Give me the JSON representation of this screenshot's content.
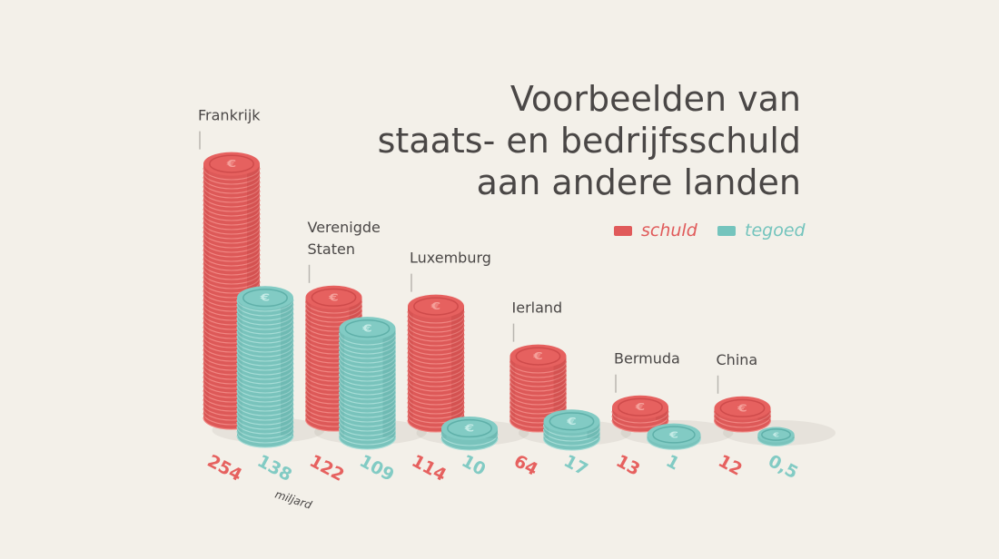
{
  "title": {
    "line1": "Voorbeelden van",
    "line2": "staats- en bedrijfsschuld",
    "line3": "aan andere landen"
  },
  "legend": {
    "schuld": "schuld",
    "tegoed": "tegoed"
  },
  "unit": "miljard",
  "colors": {
    "schuld": "#e05a5a",
    "tegoed": "#74c4bd",
    "text": "#4a4746",
    "leader": "#b9b6b0"
  },
  "coin_icon": "euro-icon",
  "chart_data": {
    "type": "bar",
    "title": "Voorbeelden van staats- en bedrijfsschuld aan andere landen",
    "unit": "miljard",
    "categories": [
      "Frankrijk",
      "Verenigde Staten",
      "Luxemburg",
      "Ierland",
      "Bermuda",
      "China"
    ],
    "category_lines": [
      [
        "Frankrijk"
      ],
      [
        "Verenigde",
        "Staten"
      ],
      [
        "Luxemburg"
      ],
      [
        "Ierland"
      ],
      [
        "Bermuda"
      ],
      [
        "China"
      ]
    ],
    "series": [
      {
        "name": "schuld",
        "values": [
          254,
          122,
          114,
          64,
          13,
          12
        ],
        "labels": [
          "254",
          "122",
          "114",
          "64",
          "13",
          "12"
        ]
      },
      {
        "name": "tegoed",
        "values": [
          138,
          109,
          10,
          17,
          1,
          0.5
        ],
        "labels": [
          "138",
          "109",
          "10",
          "17",
          "1",
          "0,5"
        ]
      }
    ],
    "legend_position": "top-right",
    "grid": false
  }
}
